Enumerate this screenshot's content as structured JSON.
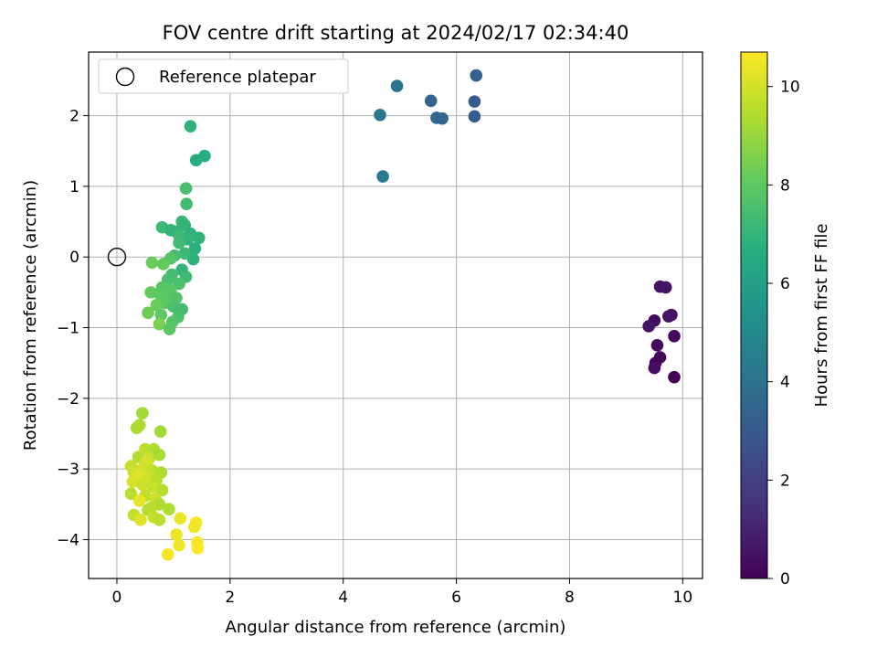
{
  "chart_data": {
    "type": "scatter",
    "title": "FOV centre drift starting at 2024/02/17 02:34:40",
    "xlabel": "Angular distance from reference (arcmin)",
    "ylabel": "Rotation from reference (arcmin)",
    "xlim": [
      -0.5,
      10.35
    ],
    "ylim": [
      -4.55,
      2.9
    ],
    "xticks": [
      0,
      2,
      4,
      6,
      8,
      10
    ],
    "yticks": [
      -4,
      -3,
      -2,
      -1,
      0,
      1,
      2
    ],
    "grid": true,
    "legend": {
      "position": "top-left",
      "entries": [
        "Reference platepar"
      ]
    },
    "reference_point": {
      "x": 0,
      "y": 0
    },
    "colorbar": {
      "label": "Hours from first FF file",
      "range": [
        0,
        10.7
      ],
      "ticks": [
        0,
        2,
        4,
        6,
        8,
        10
      ],
      "colormap": "viridis"
    },
    "points": [
      {
        "x": 9.6,
        "y": -0.42,
        "c": 0.5
      },
      {
        "x": 9.7,
        "y": -0.43,
        "c": 0.6
      },
      {
        "x": 9.8,
        "y": -0.82,
        "c": 0.4
      },
      {
        "x": 9.75,
        "y": -0.84,
        "c": 0.5
      },
      {
        "x": 9.5,
        "y": -0.9,
        "c": 0.3
      },
      {
        "x": 9.4,
        "y": -0.98,
        "c": 0.6
      },
      {
        "x": 9.85,
        "y": -1.12,
        "c": 0.2
      },
      {
        "x": 9.55,
        "y": -1.25,
        "c": 0.3
      },
      {
        "x": 9.6,
        "y": -1.42,
        "c": 0.2
      },
      {
        "x": 9.52,
        "y": -1.5,
        "c": 0.1
      },
      {
        "x": 9.5,
        "y": -1.57,
        "c": 0.4
      },
      {
        "x": 9.85,
        "y": -1.7,
        "c": 0.05
      },
      {
        "x": 6.35,
        "y": 2.57,
        "c": 3.2
      },
      {
        "x": 6.32,
        "y": 2.2,
        "c": 3.0
      },
      {
        "x": 6.32,
        "y": 1.99,
        "c": 3.1
      },
      {
        "x": 4.95,
        "y": 2.42,
        "c": 4.1
      },
      {
        "x": 5.55,
        "y": 2.21,
        "c": 3.4
      },
      {
        "x": 5.65,
        "y": 1.97,
        "c": 3.6
      },
      {
        "x": 5.75,
        "y": 1.96,
        "c": 3.5
      },
      {
        "x": 4.65,
        "y": 2.01,
        "c": 4.2
      },
      {
        "x": 4.7,
        "y": 1.14,
        "c": 4.3
      },
      {
        "x": 1.3,
        "y": 1.85,
        "c": 6.9
      },
      {
        "x": 1.55,
        "y": 1.43,
        "c": 6.7
      },
      {
        "x": 1.4,
        "y": 1.37,
        "c": 6.6
      },
      {
        "x": 1.22,
        "y": 0.97,
        "c": 7.5
      },
      {
        "x": 1.23,
        "y": 0.75,
        "c": 7.3
      },
      {
        "x": 1.15,
        "y": 0.5,
        "c": 7.1
      },
      {
        "x": 1.2,
        "y": 0.45,
        "c": 7.0
      },
      {
        "x": 0.8,
        "y": 0.42,
        "c": 7.2
      },
      {
        "x": 0.95,
        "y": 0.38,
        "c": 7.0
      },
      {
        "x": 1.05,
        "y": 0.36,
        "c": 6.9
      },
      {
        "x": 1.3,
        "y": 0.33,
        "c": 6.8
      },
      {
        "x": 1.1,
        "y": 0.3,
        "c": 7.2
      },
      {
        "x": 1.45,
        "y": 0.27,
        "c": 6.9
      },
      {
        "x": 1.25,
        "y": 0.25,
        "c": 7.0
      },
      {
        "x": 1.1,
        "y": 0.2,
        "c": 7.3
      },
      {
        "x": 1.38,
        "y": 0.12,
        "c": 6.8
      },
      {
        "x": 1.2,
        "y": 0.05,
        "c": 7.2
      },
      {
        "x": 1.02,
        "y": 0.02,
        "c": 7.4
      },
      {
        "x": 0.95,
        "y": -0.02,
        "c": 7.8
      },
      {
        "x": 1.35,
        "y": -0.03,
        "c": 6.9
      },
      {
        "x": 0.62,
        "y": -0.08,
        "c": 8.2
      },
      {
        "x": 0.82,
        "y": -0.1,
        "c": 8.1
      },
      {
        "x": 1.15,
        "y": -0.18,
        "c": 7.0
      },
      {
        "x": 0.97,
        "y": -0.25,
        "c": 7.4
      },
      {
        "x": 1.22,
        "y": -0.28,
        "c": 7.3
      },
      {
        "x": 0.9,
        "y": -0.32,
        "c": 7.5
      },
      {
        "x": 1.1,
        "y": -0.38,
        "c": 7.6
      },
      {
        "x": 0.8,
        "y": -0.43,
        "c": 7.8
      },
      {
        "x": 0.95,
        "y": -0.47,
        "c": 7.9
      },
      {
        "x": 0.6,
        "y": -0.5,
        "c": 8.1
      },
      {
        "x": 0.75,
        "y": -0.52,
        "c": 8.0
      },
      {
        "x": 0.88,
        "y": -0.55,
        "c": 7.9
      },
      {
        "x": 1.05,
        "y": -0.58,
        "c": 7.7
      },
      {
        "x": 0.85,
        "y": -0.65,
        "c": 8.0
      },
      {
        "x": 0.7,
        "y": -0.68,
        "c": 8.2
      },
      {
        "x": 1.0,
        "y": -0.7,
        "c": 7.6
      },
      {
        "x": 1.15,
        "y": -0.74,
        "c": 7.4
      },
      {
        "x": 0.55,
        "y": -0.79,
        "c": 8.3
      },
      {
        "x": 0.78,
        "y": -0.82,
        "c": 8.0
      },
      {
        "x": 1.08,
        "y": -0.85,
        "c": 7.6
      },
      {
        "x": 0.98,
        "y": -0.92,
        "c": 7.8
      },
      {
        "x": 0.75,
        "y": -0.95,
        "c": 8.5
      },
      {
        "x": 0.93,
        "y": -1.02,
        "c": 7.9
      },
      {
        "x": 0.45,
        "y": -2.21,
        "c": 9.2
      },
      {
        "x": 0.4,
        "y": -2.38,
        "c": 9.4
      },
      {
        "x": 0.35,
        "y": -2.42,
        "c": 9.3
      },
      {
        "x": 0.77,
        "y": -2.47,
        "c": 9.2
      },
      {
        "x": 0.5,
        "y": -2.72,
        "c": 9.6
      },
      {
        "x": 0.65,
        "y": -2.72,
        "c": 9.4
      },
      {
        "x": 0.38,
        "y": -2.83,
        "c": 9.5
      },
      {
        "x": 0.57,
        "y": -2.85,
        "c": 9.8
      },
      {
        "x": 0.75,
        "y": -2.8,
        "c": 9.3
      },
      {
        "x": 0.52,
        "y": -2.9,
        "c": 10.1
      },
      {
        "x": 0.25,
        "y": -2.96,
        "c": 9.8
      },
      {
        "x": 0.45,
        "y": -3.0,
        "c": 10.0
      },
      {
        "x": 0.62,
        "y": -3.02,
        "c": 9.7
      },
      {
        "x": 0.3,
        "y": -3.05,
        "c": 9.9
      },
      {
        "x": 0.78,
        "y": -3.05,
        "c": 9.4
      },
      {
        "x": 0.38,
        "y": -3.1,
        "c": 10.2
      },
      {
        "x": 0.55,
        "y": -3.13,
        "c": 10.0
      },
      {
        "x": 0.7,
        "y": -3.15,
        "c": 9.6
      },
      {
        "x": 0.28,
        "y": -3.18,
        "c": 10.1
      },
      {
        "x": 0.45,
        "y": -3.22,
        "c": 9.9
      },
      {
        "x": 0.63,
        "y": -3.25,
        "c": 9.8
      },
      {
        "x": 0.8,
        "y": -3.3,
        "c": 9.5
      },
      {
        "x": 0.25,
        "y": -3.35,
        "c": 9.6
      },
      {
        "x": 0.5,
        "y": -3.38,
        "c": 9.7
      },
      {
        "x": 0.68,
        "y": -3.42,
        "c": 9.9
      },
      {
        "x": 0.4,
        "y": -3.45,
        "c": 10.3
      },
      {
        "x": 0.75,
        "y": -3.5,
        "c": 9.4
      },
      {
        "x": 0.6,
        "y": -3.55,
        "c": 9.6
      },
      {
        "x": 0.55,
        "y": -3.58,
        "c": 9.5
      },
      {
        "x": 0.92,
        "y": -3.57,
        "c": 9.4
      },
      {
        "x": 0.3,
        "y": -3.65,
        "c": 9.7
      },
      {
        "x": 0.65,
        "y": -3.68,
        "c": 9.8
      },
      {
        "x": 0.75,
        "y": -3.72,
        "c": 9.6
      },
      {
        "x": 0.42,
        "y": -3.72,
        "c": 10.2
      },
      {
        "x": 1.12,
        "y": -3.7,
        "c": 10.4
      },
      {
        "x": 1.4,
        "y": -3.76,
        "c": 10.6
      },
      {
        "x": 1.37,
        "y": -3.82,
        "c": 10.5
      },
      {
        "x": 1.05,
        "y": -3.93,
        "c": 10.4
      },
      {
        "x": 1.42,
        "y": -4.04,
        "c": 10.6
      },
      {
        "x": 1.1,
        "y": -4.08,
        "c": 10.5
      },
      {
        "x": 1.43,
        "y": -4.12,
        "c": 10.7
      },
      {
        "x": 0.9,
        "y": -4.21,
        "c": 10.6
      }
    ]
  }
}
